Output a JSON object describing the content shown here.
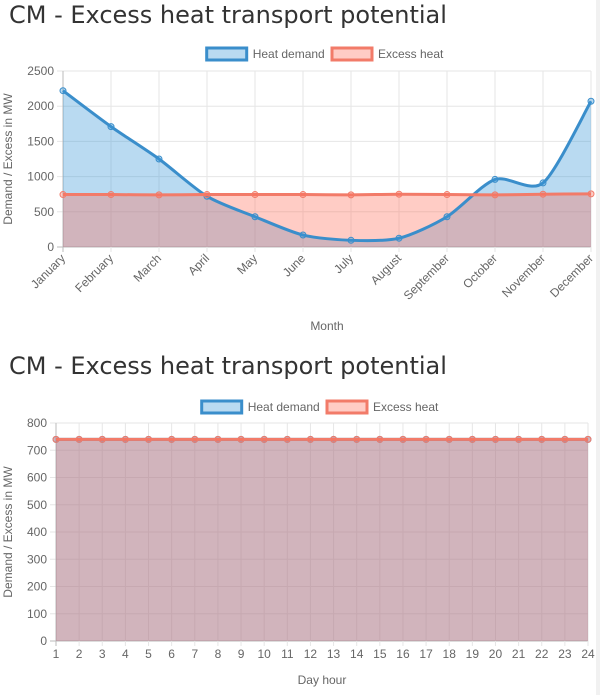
{
  "chart_data": [
    {
      "type": "area",
      "title": "CM - Excess heat transport potential",
      "xlabel": "Month",
      "ylabel": "Demand / Excess in MW",
      "ylim": [
        0,
        2500
      ],
      "yticks": [
        0,
        500,
        1000,
        1500,
        2000,
        2500
      ],
      "categories": [
        "January",
        "February",
        "March",
        "April",
        "May",
        "June",
        "July",
        "August",
        "September",
        "October",
        "November",
        "December"
      ],
      "legend_position": "top-center",
      "grid": true,
      "series": [
        {
          "name": "Heat demand",
          "color": "#3a8ecb",
          "fill": "rgba(54,150,214,0.35)",
          "values": [
            2220,
            1710,
            1250,
            720,
            430,
            170,
            95,
            125,
            430,
            960,
            910,
            2070
          ]
        },
        {
          "name": "Excess heat",
          "color": "#f27b69",
          "fill": "rgba(255,110,90,0.35)",
          "values": [
            745,
            745,
            740,
            745,
            745,
            745,
            740,
            750,
            745,
            740,
            750,
            755
          ]
        }
      ]
    },
    {
      "type": "area",
      "title": "CM - Excess heat transport potential",
      "xlabel": "Day hour",
      "ylabel": "Demand / Excess in MW",
      "ylim": [
        0,
        800
      ],
      "yticks": [
        0,
        100,
        200,
        300,
        400,
        500,
        600,
        700,
        800
      ],
      "categories": [
        "1",
        "2",
        "3",
        "4",
        "5",
        "6",
        "7",
        "8",
        "9",
        "10",
        "11",
        "12",
        "13",
        "14",
        "15",
        "16",
        "17",
        "18",
        "19",
        "20",
        "21",
        "22",
        "23",
        "24"
      ],
      "legend_position": "top-center",
      "grid": true,
      "series": [
        {
          "name": "Heat demand",
          "color": "#3a8ecb",
          "fill": "rgba(54,150,214,0.35)",
          "values": [
            740,
            740,
            740,
            740,
            740,
            740,
            740,
            740,
            740,
            740,
            740,
            740,
            740,
            740,
            740,
            740,
            740,
            740,
            740,
            740,
            740,
            740,
            740,
            740
          ]
        },
        {
          "name": "Excess heat",
          "color": "#f27b69",
          "fill": "rgba(255,110,90,0.35)",
          "values": [
            740,
            740,
            740,
            740,
            740,
            740,
            740,
            740,
            740,
            740,
            740,
            740,
            740,
            740,
            740,
            740,
            740,
            740,
            740,
            740,
            740,
            740,
            740,
            740
          ]
        }
      ]
    }
  ]
}
